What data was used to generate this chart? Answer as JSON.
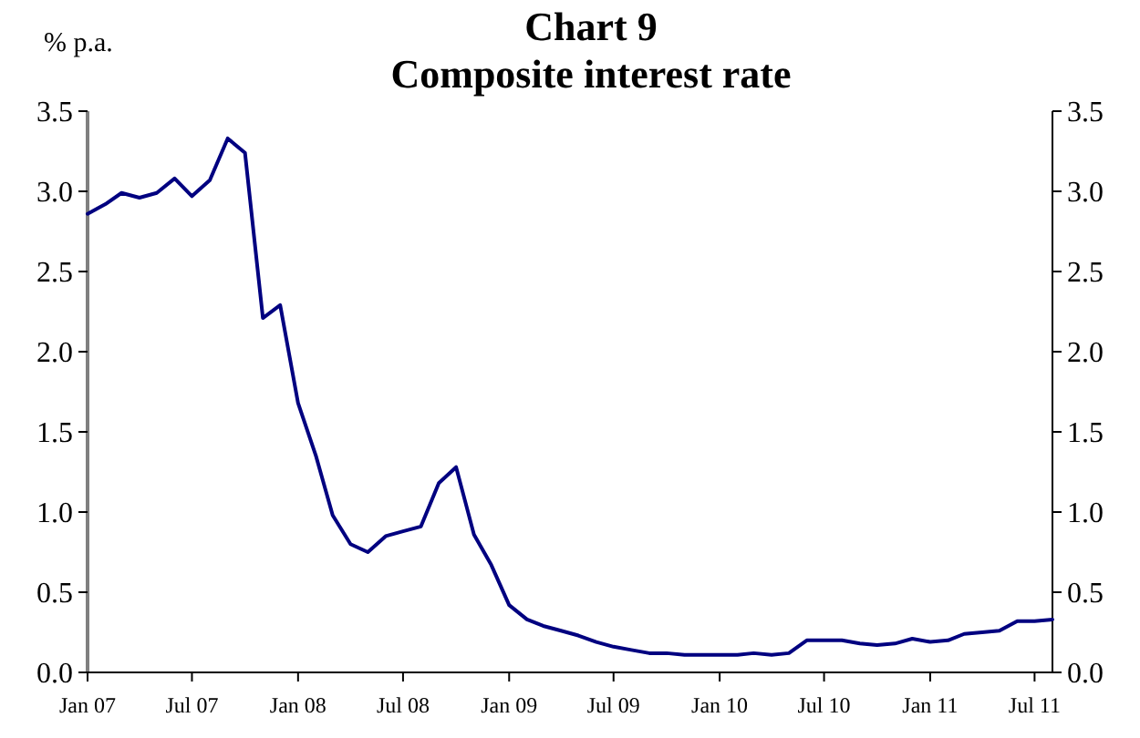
{
  "chart_data": {
    "type": "line",
    "title": "Chart 9",
    "subtitle": "Composite interest rate",
    "ylabel": "% p.a.",
    "x": [
      "2007-01",
      "2007-02",
      "2007-03",
      "2007-04",
      "2007-05",
      "2007-06",
      "2007-07",
      "2007-08",
      "2007-09",
      "2007-10",
      "2007-11",
      "2007-12",
      "2008-01",
      "2008-02",
      "2008-03",
      "2008-04",
      "2008-05",
      "2008-06",
      "2008-07",
      "2008-08",
      "2008-09",
      "2008-10",
      "2008-11",
      "2008-12",
      "2009-01",
      "2009-02",
      "2009-03",
      "2009-04",
      "2009-05",
      "2009-06",
      "2009-07",
      "2009-08",
      "2009-09",
      "2009-10",
      "2009-11",
      "2009-12",
      "2010-01",
      "2010-02",
      "2010-03",
      "2010-04",
      "2010-05",
      "2010-06",
      "2010-07",
      "2010-08",
      "2010-09",
      "2010-10",
      "2010-11",
      "2010-12",
      "2011-01",
      "2011-02",
      "2011-03",
      "2011-04",
      "2011-05",
      "2011-06",
      "2011-07",
      "2011-08"
    ],
    "series": [
      {
        "color": "#000080",
        "values": [
          2.86,
          2.92,
          2.99,
          2.96,
          2.99,
          3.08,
          2.97,
          3.07,
          3.33,
          3.24,
          2.21,
          2.29,
          1.68,
          1.35,
          0.98,
          0.8,
          0.75,
          0.85,
          0.88,
          0.91,
          1.18,
          1.28,
          0.86,
          0.67,
          0.42,
          0.33,
          0.29,
          0.26,
          0.23,
          0.19,
          0.16,
          0.14,
          0.12,
          0.12,
          0.11,
          0.11,
          0.11,
          0.11,
          0.12,
          0.11,
          0.12,
          0.2,
          0.2,
          0.2,
          0.18,
          0.17,
          0.18,
          0.21,
          0.19,
          0.2,
          0.24,
          0.25,
          0.26,
          0.32,
          0.32,
          0.33
        ]
      }
    ],
    "xlim": [
      "2007-01",
      "2011-08"
    ],
    "xticks": [
      {
        "value": "2007-01",
        "label": "Jan 07"
      },
      {
        "value": "2007-07",
        "label": "Jul 07"
      },
      {
        "value": "2008-01",
        "label": "Jan 08"
      },
      {
        "value": "2008-07",
        "label": "Jul 08"
      },
      {
        "value": "2009-01",
        "label": "Jan 09"
      },
      {
        "value": "2009-07",
        "label": "Jul 09"
      },
      {
        "value": "2010-01",
        "label": "Jan 10"
      },
      {
        "value": "2010-07",
        "label": "Jul 10"
      },
      {
        "value": "2011-01",
        "label": "Jan 11"
      },
      {
        "value": "2011-07",
        "label": "Jul 11"
      }
    ],
    "ylim": [
      0,
      3.5
    ],
    "yticks": [
      {
        "value": 0,
        "label": "0.0"
      },
      0.5,
      {
        "value": 1,
        "label": "1.0"
      },
      1.5,
      {
        "value": 2,
        "label": "2.0"
      },
      2.5,
      {
        "value": 3,
        "label": "3.0"
      },
      3.5
    ],
    "y2lim": [
      0,
      3.5
    ],
    "y2ticks": [
      {
        "value": 0,
        "label": "0.0"
      },
      0.5,
      {
        "value": 1,
        "label": "1.0"
      },
      1.5,
      {
        "value": 2,
        "label": "2.0"
      },
      2.5,
      {
        "value": 3,
        "label": "3.0"
      },
      3.5
    ],
    "grid": false,
    "marker": "none",
    "line_style": "solid"
  }
}
